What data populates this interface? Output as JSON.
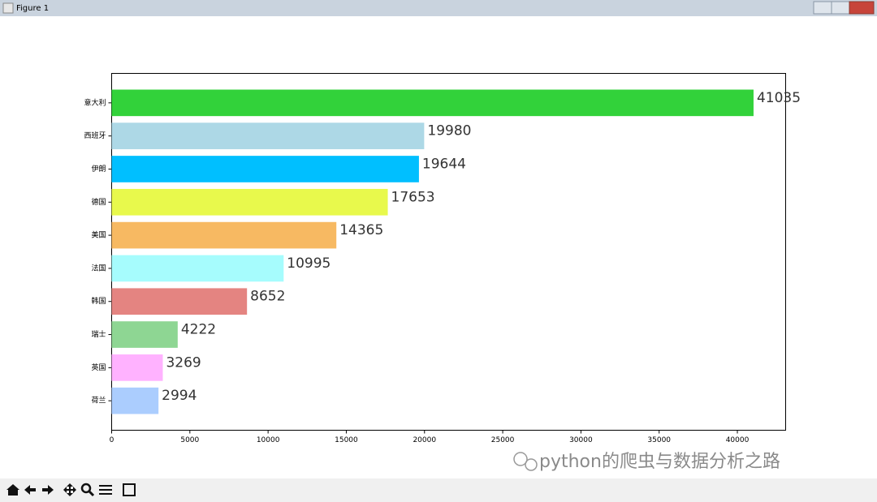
{
  "window": {
    "title": "Figure 1"
  },
  "chart_data": {
    "type": "barh",
    "categories": [
      "意大利",
      "西班牙",
      "伊朗",
      "德国",
      "美国",
      "法国",
      "韩国",
      "瑞士",
      "英国",
      "荷兰"
    ],
    "values": [
      41035,
      19980,
      19644,
      17653,
      14365,
      10995,
      8652,
      4222,
      3269,
      2994
    ],
    "colors": [
      "#32d23a",
      "#add8e6",
      "#00bfff",
      "#e8f94c",
      "#f7b962",
      "#a6fcfd",
      "#e48481",
      "#8ed693",
      "#ffb2ff",
      "#abcdfe"
    ],
    "xlim": [
      0,
      43087
    ],
    "xticks": [
      0,
      5000,
      10000,
      15000,
      20000,
      25000,
      30000,
      35000,
      40000
    ],
    "grid": false
  },
  "watermark": "python的爬虫与数据分析之路"
}
